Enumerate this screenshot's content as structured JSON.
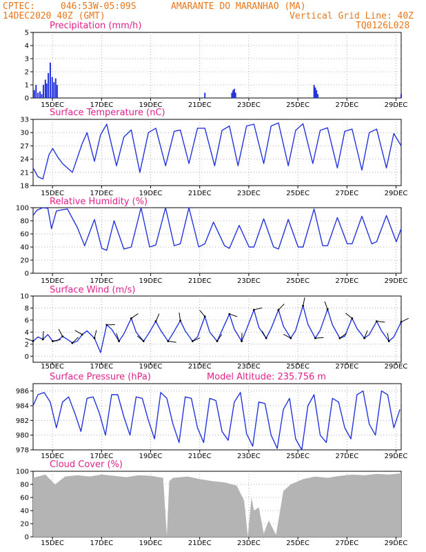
{
  "header": {
    "source": "CPTEC:",
    "coords": "046:53W-05:09S",
    "location": "AMARANTE DO MARANHAO (MA)",
    "date": "14DEC2020 40Z (GMT)",
    "grid_note": "Vertical Grid Line: 40Z",
    "model": "TQ0126L028"
  },
  "colors": {
    "header": "#e8761b",
    "title": "#e0208a",
    "line": "#2233dd",
    "cloud": "#b4b4b4",
    "arrow": "#000000"
  },
  "x_tick_labels": [
    "15DEC",
    "17DEC",
    "19DEC",
    "21DEC",
    "23DEC",
    "25DEC",
    "27DEC",
    "29DEC"
  ],
  "chart_data": [
    {
      "type": "bar",
      "title": "Precipitation (mm/h)",
      "ylim": [
        0,
        5
      ],
      "yticks": [
        "0",
        "1",
        "2",
        "3",
        "4",
        "5"
      ],
      "x_range_days": [
        14.0,
        29.0
      ],
      "x": [
        14.05,
        14.12,
        14.2,
        14.28,
        14.35,
        14.42,
        14.5,
        14.55,
        14.62,
        14.7,
        14.78,
        14.85,
        14.92,
        14.98,
        21.0,
        22.1,
        22.15,
        22.2,
        22.25,
        25.45,
        25.5,
        25.55,
        25.6,
        29.0
      ],
      "values": [
        0.6,
        1.0,
        0.4,
        0.5,
        0.3,
        1.0,
        1.4,
        1.1,
        1.9,
        2.7,
        1.6,
        1.2,
        1.5,
        1.0,
        0.4,
        0.4,
        0.6,
        0.7,
        0.4,
        1.0,
        0.8,
        0.6,
        0.3,
        0.3
      ]
    },
    {
      "type": "line",
      "title": "Surface Temperature (nC)",
      "ylim": [
        18,
        33
      ],
      "yticks": [
        "18",
        "21",
        "24",
        "27",
        "30",
        "33"
      ],
      "x": [
        14.0,
        14.2,
        14.4,
        14.65,
        14.8,
        15.0,
        15.2,
        15.4,
        15.6,
        16.0,
        16.2,
        16.5,
        16.75,
        17.0,
        17.4,
        17.7,
        18.0,
        18.35,
        18.7,
        19.0,
        19.4,
        19.75,
        20.0,
        20.35,
        20.7,
        21.0,
        21.4,
        21.7,
        22.0,
        22.35,
        22.7,
        23.0,
        23.4,
        23.7,
        24.0,
        24.4,
        24.7,
        25.0,
        25.4,
        25.7,
        26.0,
        26.4,
        26.7,
        27.0,
        27.4,
        27.7,
        28.0,
        28.4,
        28.7,
        29.0
      ],
      "values": [
        22.0,
        20.0,
        19.5,
        25.0,
        26.4,
        24.5,
        23.0,
        22.0,
        21.0,
        27.5,
        30.0,
        23.5,
        29.5,
        31.9,
        22.5,
        29.0,
        30.6,
        21.0,
        30.0,
        31.0,
        22.5,
        30.3,
        30.6,
        23.0,
        31.0,
        31.0,
        22.5,
        30.5,
        31.5,
        22.5,
        31.5,
        31.9,
        23.0,
        31.5,
        32.2,
        22.5,
        30.5,
        32.0,
        23.0,
        30.5,
        31.1,
        22.0,
        30.3,
        30.8,
        21.5,
        30.0,
        30.8,
        22.0,
        29.8,
        27.0
      ]
    },
    {
      "type": "line",
      "title": "Relative Humidity (%)",
      "ylim": [
        0,
        100
      ],
      "yticks": [
        "0",
        "20",
        "40",
        "60",
        "80",
        "100"
      ],
      "x": [
        14.0,
        14.15,
        14.4,
        14.6,
        14.75,
        14.95,
        15.2,
        15.4,
        15.8,
        16.1,
        16.5,
        16.8,
        17.0,
        17.3,
        17.7,
        18.0,
        18.4,
        18.75,
        19.0,
        19.4,
        19.75,
        20.0,
        20.35,
        20.75,
        21.0,
        21.35,
        21.8,
        22.0,
        22.4,
        22.8,
        23.0,
        23.4,
        23.8,
        24.0,
        24.4,
        24.8,
        25.0,
        25.45,
        25.8,
        26.0,
        26.4,
        26.8,
        27.0,
        27.4,
        27.8,
        28.0,
        28.4,
        28.8,
        29.0
      ],
      "values": [
        88.0,
        96.0,
        100.0,
        99.0,
        68.0,
        95.0,
        97.0,
        98.0,
        70.0,
        42.0,
        82.0,
        38.0,
        35.0,
        80.0,
        37.0,
        40.0,
        100.0,
        40.0,
        43.0,
        100.0,
        42.0,
        45.0,
        100.0,
        40.0,
        45.0,
        78.0,
        42.0,
        38.0,
        73.0,
        40.0,
        40.0,
        83.0,
        40.0,
        37.0,
        82.0,
        40.0,
        40.0,
        98.0,
        42.0,
        42.0,
        85.0,
        45.0,
        45.0,
        87.0,
        45.0,
        48.0,
        88.0,
        48.0,
        68.0
      ]
    },
    {
      "type": "line",
      "title": "Surface Wind (m/s)",
      "ylim": [
        -1,
        10
      ],
      "yticks": [
        "0",
        "2",
        "4",
        "6",
        "8",
        "10"
      ],
      "x": [
        14.0,
        14.2,
        14.4,
        14.6,
        14.8,
        15.0,
        15.2,
        15.4,
        15.6,
        15.8,
        16.0,
        16.2,
        16.5,
        16.75,
        17.0,
        17.2,
        17.5,
        17.7,
        18.0,
        18.2,
        18.5,
        18.7,
        19.0,
        19.2,
        19.5,
        19.7,
        20.0,
        20.2,
        20.5,
        20.7,
        21.0,
        21.2,
        21.5,
        21.7,
        22.0,
        22.2,
        22.5,
        22.7,
        23.0,
        23.2,
        23.5,
        23.7,
        24.0,
        24.2,
        24.5,
        24.7,
        25.0,
        25.2,
        25.5,
        25.7,
        26.0,
        26.2,
        26.5,
        26.7,
        27.0,
        27.2,
        27.5,
        27.7,
        28.0,
        28.2,
        28.5,
        28.7,
        29.0
      ],
      "values": [
        2.5,
        3.2,
        2.8,
        3.6,
        2.5,
        2.6,
        3.3,
        2.8,
        2.2,
        2.5,
        3.6,
        4.2,
        3.0,
        0.6,
        5.2,
        4.5,
        2.5,
        3.7,
        6.3,
        4.0,
        2.5,
        3.7,
        5.8,
        4.3,
        2.5,
        3.8,
        5.9,
        4.2,
        2.5,
        3.2,
        6.6,
        4.0,
        2.5,
        4.3,
        7.0,
        4.5,
        2.5,
        4.5,
        7.7,
        4.8,
        3.0,
        4.6,
        7.7,
        5.0,
        3.0,
        4.3,
        8.4,
        5.3,
        3.0,
        4.3,
        7.8,
        5.2,
        3.0,
        3.3,
        6.3,
        4.6,
        3.0,
        3.6,
        5.8,
        4.2,
        2.5,
        3.2,
        5.7
      ]
    },
    {
      "type": "line",
      "title": "Surface Pressure (hPa)",
      "annotation": "Model Altitude: 235.756 m",
      "ylim": [
        978,
        987
      ],
      "yticks": [
        "978",
        "980",
        "982",
        "984",
        "986"
      ],
      "x": [
        14.0,
        14.2,
        14.45,
        14.7,
        14.95,
        15.2,
        15.45,
        15.7,
        15.95,
        16.2,
        16.45,
        16.7,
        16.95,
        17.2,
        17.45,
        17.7,
        17.95,
        18.2,
        18.45,
        18.7,
        18.95,
        19.2,
        19.45,
        19.7,
        19.95,
        20.2,
        20.45,
        20.7,
        20.95,
        21.2,
        21.45,
        21.7,
        21.95,
        22.2,
        22.45,
        22.7,
        22.95,
        23.2,
        23.45,
        23.7,
        23.95,
        24.2,
        24.45,
        24.7,
        24.95,
        25.2,
        25.45,
        25.7,
        25.95,
        26.2,
        26.45,
        26.7,
        26.95,
        27.2,
        27.45,
        27.7,
        27.95,
        28.2,
        28.45,
        28.7,
        28.95
      ],
      "values": [
        984.0,
        985.5,
        985.8,
        984.5,
        981.0,
        984.5,
        985.2,
        983.0,
        980.5,
        985.0,
        985.2,
        983.0,
        980.0,
        985.5,
        985.5,
        982.5,
        980.0,
        985.2,
        985.0,
        982.0,
        979.5,
        985.8,
        985.0,
        981.5,
        979.0,
        985.2,
        985.0,
        981.0,
        979.0,
        985.0,
        984.7,
        980.5,
        979.3,
        984.5,
        985.8,
        980.2,
        978.5,
        984.5,
        984.3,
        980.0,
        978.2,
        983.5,
        985.0,
        979.5,
        978.0,
        984.0,
        985.5,
        980.0,
        979.0,
        985.0,
        984.5,
        981.0,
        979.5,
        985.5,
        986.0,
        981.5,
        980.0,
        986.0,
        985.5,
        981.0,
        983.5
      ]
    },
    {
      "type": "area",
      "title": "Cloud Cover (%)",
      "ylim": [
        0,
        100
      ],
      "yticks": [
        "0",
        "20",
        "40",
        "60",
        "80",
        "100"
      ],
      "x": [
        14.0,
        14.5,
        14.9,
        15.3,
        15.8,
        16.3,
        16.8,
        17.3,
        17.8,
        18.3,
        18.8,
        19.3,
        19.45,
        19.55,
        19.7,
        20.3,
        20.8,
        21.3,
        21.8,
        22.3,
        22.6,
        22.75,
        22.9,
        23.0,
        23.2,
        23.4,
        23.6,
        23.9,
        24.2,
        24.5,
        25.0,
        25.5,
        26.0,
        26.5,
        27.0,
        27.5,
        28.0,
        28.5,
        29.0
      ],
      "values": [
        90,
        95,
        80,
        92,
        94,
        92,
        95,
        93,
        91,
        94,
        93,
        90,
        2,
        85,
        90,
        92,
        88,
        85,
        83,
        78,
        55,
        1,
        60,
        40,
        45,
        5,
        25,
        3,
        70,
        80,
        88,
        92,
        90,
        93,
        95,
        94,
        96,
        95,
        97
      ]
    }
  ]
}
